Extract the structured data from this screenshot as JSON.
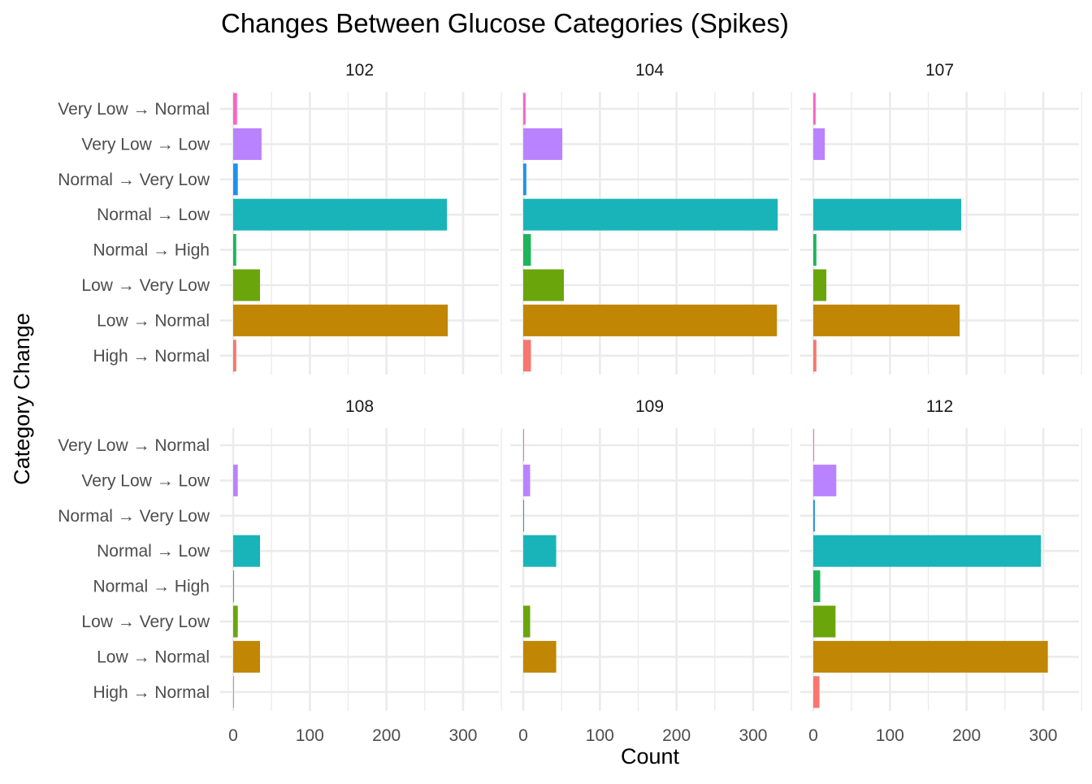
{
  "chart_data": {
    "type": "bar",
    "orientation": "horizontal",
    "faceted": true,
    "title": "Changes Between Glucose Categories (Spikes)",
    "xlabel": "Count",
    "ylabel": "Category Change",
    "xlim": [
      0,
      350
    ],
    "x_ticks": [
      0,
      100,
      200,
      300
    ],
    "grid": true,
    "legend": "none",
    "categories": [
      "Very Low → Normal",
      "Very Low → Low",
      "Normal → Very Low",
      "Normal → Low",
      "Normal → High",
      "Low → Very Low",
      "Low → Normal",
      "High → Normal"
    ],
    "colors": {
      "Very Low → Normal": "#FF61C3",
      "Very Low → Low": "#B983FF",
      "Normal → Very Low": "#1E90F0",
      "Normal → Low": "#19B4B9",
      "Normal → High": "#1FB35A",
      "Low → Very Low": "#6BA50C",
      "Low → Normal": "#C08604",
      "High → Normal": "#F8766D"
    },
    "facets": [
      {
        "name": "102",
        "values": {
          "Very Low → Normal": 5,
          "Very Low → Low": 37,
          "Normal → Very Low": 6,
          "Normal → Low": 279,
          "Normal → High": 4,
          "Low → Very Low": 35,
          "Low → Normal": 280,
          "High → Normal": 4
        }
      },
      {
        "name": "104",
        "values": {
          "Very Low → Normal": 3,
          "Very Low → Low": 51,
          "Normal → Very Low": 4,
          "Normal → Low": 332,
          "Normal → High": 10,
          "Low → Very Low": 53,
          "Low → Normal": 331,
          "High → Normal": 10
        }
      },
      {
        "name": "107",
        "values": {
          "Very Low → Normal": 3,
          "Very Low → Low": 15,
          "Normal → Very Low": 0,
          "Normal → Low": 193,
          "Normal → High": 4,
          "Low → Very Low": 17,
          "Low → Normal": 191,
          "High → Normal": 4
        }
      },
      {
        "name": "108",
        "values": {
          "Very Low → Normal": 0,
          "Very Low → Low": 6,
          "Normal → Very Low": 0,
          "Normal → Low": 35,
          "Normal → High": 1,
          "Low → Very Low": 6,
          "Low → Normal": 35,
          "High → Normal": 1
        }
      },
      {
        "name": "109",
        "values": {
          "Very Low → Normal": 1,
          "Very Low → Low": 9,
          "Normal → Very Low": 1,
          "Normal → Low": 43,
          "Normal → High": 0,
          "Low → Very Low": 9,
          "Low → Normal": 43,
          "High → Normal": 0
        }
      },
      {
        "name": "112",
        "values": {
          "Very Low → Normal": 1,
          "Very Low → Low": 30,
          "Normal → Very Low": 2,
          "Normal → Low": 297,
          "Normal → High": 9,
          "Low → Very Low": 29,
          "Low → Normal": 306,
          "High → Normal": 8
        }
      }
    ]
  }
}
